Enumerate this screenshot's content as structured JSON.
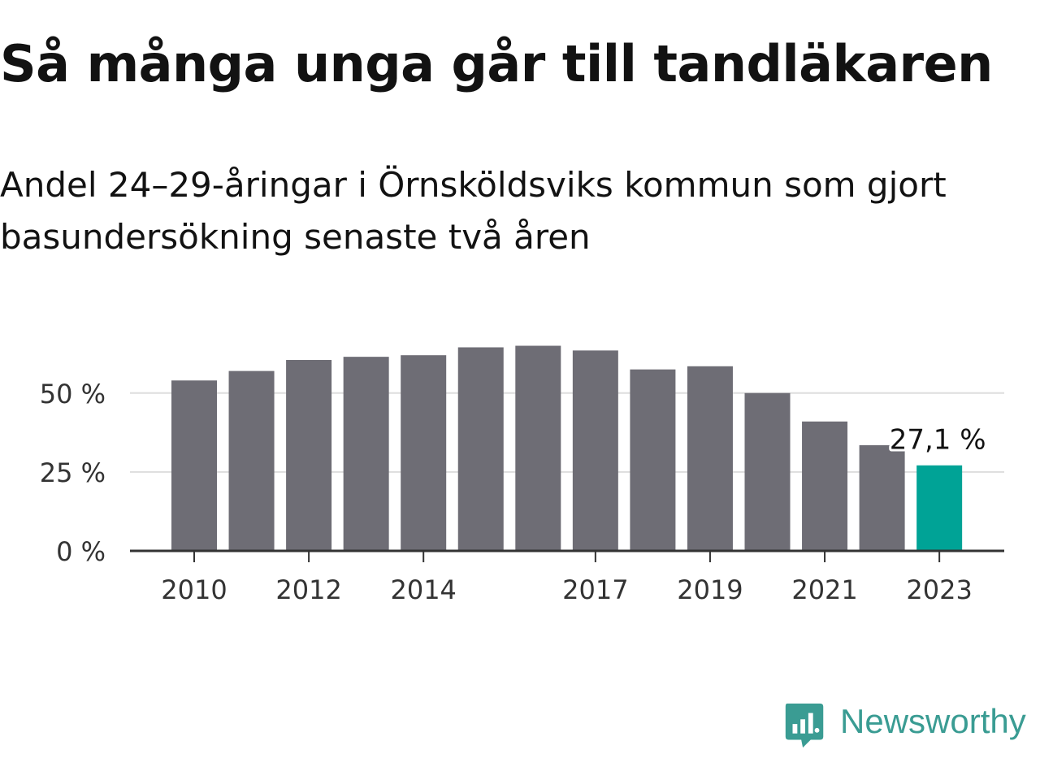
{
  "header": {
    "title": "Så många unga går till tandläkaren",
    "subtitle": "Andel 24–29-åringar i Örnsköldsviks kommun som gjort basundersökning senaste två åren"
  },
  "chart_data": {
    "type": "bar",
    "title": "Så många unga går till tandläkaren",
    "subtitle": "Andel 24–29-åringar i Örnsköldsviks kommun som gjort basundersökning senaste två åren",
    "xlabel": "",
    "ylabel": "",
    "categories": [
      "2010",
      "2011",
      "2012",
      "2013",
      "2014",
      "2015",
      "2016",
      "2017",
      "2018",
      "2019",
      "2020",
      "2021",
      "2022",
      "2023"
    ],
    "values": [
      54,
      57,
      60.5,
      61.5,
      62,
      64.5,
      65,
      63.5,
      57.5,
      58.5,
      50,
      41,
      33.5,
      27.1
    ],
    "ylim": [
      0,
      65
    ],
    "yticks": [
      0,
      25,
      50
    ],
    "ytick_labels": [
      "0 %",
      "25 %",
      "50 %"
    ],
    "xtick_labels": [
      "2010",
      "2012",
      "2014",
      "2017",
      "2019",
      "2021",
      "2023"
    ],
    "highlight_index": 13,
    "annotation": "27,1 %",
    "grid": true,
    "legend": "none",
    "colors": {
      "bar": "#6e6d75",
      "highlight": "#00a396",
      "grid": "#dddddd",
      "axis": "#333333",
      "tick_text": "#333333"
    }
  },
  "branding": {
    "logo_text": "Newsworthy",
    "logo_icon": "chart-bubble-icon",
    "color": "#3a9c93"
  }
}
